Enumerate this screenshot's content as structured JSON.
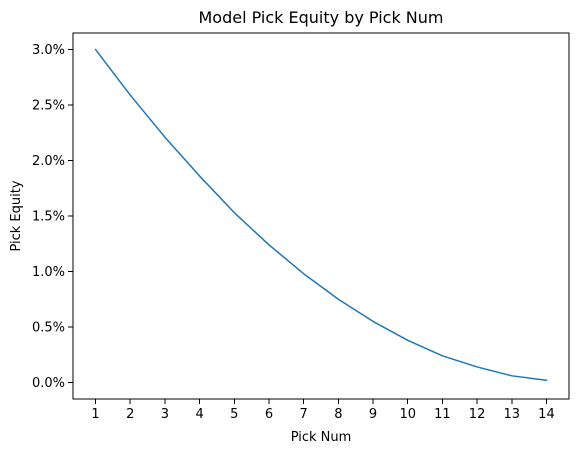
{
  "chart_data": {
    "type": "line",
    "title": "Model Pick Equity by Pick Num",
    "xlabel": "Pick Num",
    "ylabel": "Pick Equity",
    "x": [
      1,
      2,
      3,
      4,
      5,
      6,
      7,
      8,
      9,
      10,
      11,
      12,
      13,
      14
    ],
    "series": [
      {
        "name": "",
        "color": "#1f77b4",
        "values": [
          0.03,
          0.0259,
          0.0221,
          0.0186,
          0.0153,
          0.0124,
          0.0098,
          0.0075,
          0.0055,
          0.0038,
          0.0024,
          0.0014,
          0.0006,
          0.0002
        ]
      }
    ],
    "xticks": [
      1,
      2,
      3,
      4,
      5,
      6,
      7,
      8,
      9,
      10,
      11,
      12,
      13,
      14
    ],
    "yticks": [
      0.0,
      0.005,
      0.01,
      0.015,
      0.02,
      0.025,
      0.03
    ],
    "ytick_labels": [
      "0.0%",
      "0.5%",
      "1.0%",
      "1.5%",
      "2.0%",
      "2.5%",
      "3.0%"
    ],
    "xlim": [
      0.35,
      14.65
    ],
    "ylim": [
      -0.00149,
      0.03149
    ],
    "grid": false,
    "legend": "none"
  }
}
